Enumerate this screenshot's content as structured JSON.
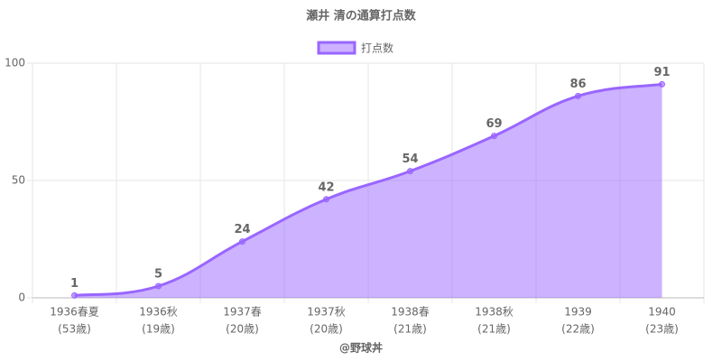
{
  "chart_data": {
    "type": "area",
    "title": "瀬井 清の通算打点数",
    "xlabel": "@野球丼",
    "categories": [
      [
        "1936春夏",
        "(53歳)"
      ],
      [
        "1936秋",
        "(19歳)"
      ],
      [
        "1937春",
        "(20歳)"
      ],
      [
        "1937秋",
        "(20歳)"
      ],
      [
        "1938春",
        "(21歳)"
      ],
      [
        "1938秋",
        "(21歳)"
      ],
      [
        "1939",
        "(22歳)"
      ],
      [
        "1940",
        "(23歳)"
      ]
    ],
    "series": [
      {
        "name": "打点数",
        "color": "#9966ff",
        "values": [
          1,
          5,
          24,
          42,
          54,
          69,
          86,
          91
        ]
      }
    ],
    "ylim": [
      0,
      100
    ],
    "yticks": [
      0,
      50,
      100
    ],
    "grid": true,
    "legend": "top"
  }
}
